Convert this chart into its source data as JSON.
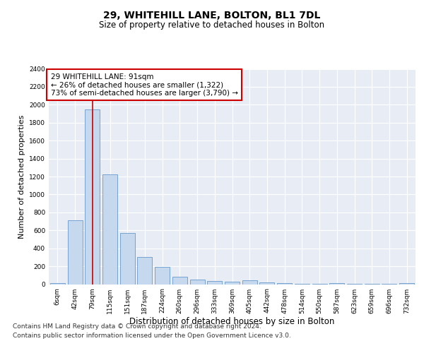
{
  "title_line1": "29, WHITEHILL LANE, BOLTON, BL1 7DL",
  "title_line2": "Size of property relative to detached houses in Bolton",
  "xlabel": "Distribution of detached houses by size in Bolton",
  "ylabel": "Number of detached properties",
  "bar_color": "#c5d8ee",
  "bar_edge_color": "#6699cc",
  "background_color": "#e8edf5",
  "grid_color": "#ffffff",
  "categories": [
    "6sqm",
    "42sqm",
    "79sqm",
    "115sqm",
    "151sqm",
    "187sqm",
    "224sqm",
    "260sqm",
    "296sqm",
    "333sqm",
    "369sqm",
    "405sqm",
    "442sqm",
    "478sqm",
    "514sqm",
    "550sqm",
    "587sqm",
    "623sqm",
    "659sqm",
    "696sqm",
    "732sqm"
  ],
  "values": [
    15,
    710,
    1950,
    1220,
    570,
    305,
    195,
    85,
    50,
    32,
    28,
    42,
    18,
    12,
    5,
    3,
    12,
    3,
    2,
    1,
    12
  ],
  "ylim": [
    0,
    2400
  ],
  "yticks": [
    0,
    200,
    400,
    600,
    800,
    1000,
    1200,
    1400,
    1600,
    1800,
    2000,
    2200,
    2400
  ],
  "property_line_x": 2,
  "annotation_text": "29 WHITEHILL LANE: 91sqm\n← 26% of detached houses are smaller (1,322)\n73% of semi-detached houses are larger (3,790) →",
  "annotation_box_color": "#ffffff",
  "annotation_box_edge_color": "#cc0000",
  "footer_line1": "Contains HM Land Registry data © Crown copyright and database right 2024.",
  "footer_line2": "Contains public sector information licensed under the Open Government Licence v3.0.",
  "red_line_color": "#cc0000",
  "title_fontsize": 10,
  "subtitle_fontsize": 8.5,
  "tick_fontsize": 6.5,
  "ylabel_fontsize": 8,
  "xlabel_fontsize": 8.5,
  "footer_fontsize": 6.5,
  "annotation_fontsize": 7.5
}
